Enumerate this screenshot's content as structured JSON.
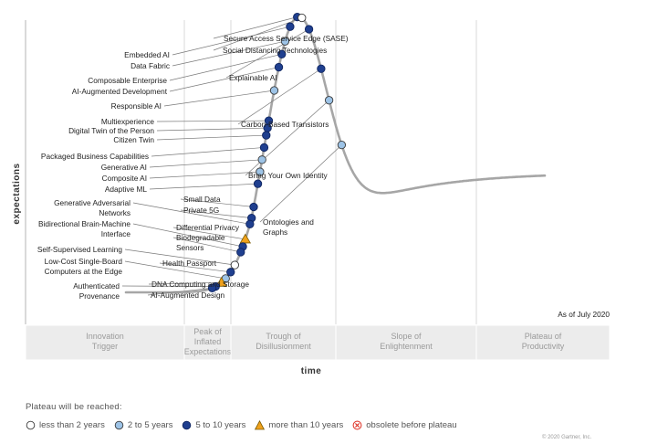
{
  "chart_data": {
    "type": "scatter",
    "title": "",
    "xlabel": "time",
    "ylabel": "expectations",
    "as_of": "As of July 2020",
    "phases": [
      "Innovation Trigger",
      "Peak of Inflated Expectations",
      "Trough of Disillusionment",
      "Slope of Enlightenment",
      "Plateau of Productivity"
    ],
    "legend_title": "Plateau will be reached:",
    "legend": [
      {
        "key": "lt2",
        "label": "less than 2 years"
      },
      {
        "key": "2to5",
        "label": "2 to 5 years"
      },
      {
        "key": "5to10",
        "label": "5 to 10 years"
      },
      {
        "key": "gt10",
        "label": "more than 10 years"
      },
      {
        "key": "obsolete",
        "label": "obsolete before plateau"
      }
    ],
    "colors": {
      "lt2": "#ffffff",
      "2to5": "#9dc3e6",
      "5to10": "#1f3f8f",
      "gt10": "#f0a21c",
      "obsolete": "#e03c31",
      "curve": "#a6a6a6"
    },
    "points": [
      {
        "name": "Secure Access Service Edge (SASE)",
        "t": 0.409,
        "plateau": "5to10"
      },
      {
        "name": "Social Distancing Technologies",
        "t": 0.42,
        "plateau": "lt2"
      },
      {
        "name": "Embedded AI",
        "t": 0.392,
        "plateau": "5to10"
      },
      {
        "name": "Data Fabric",
        "t": 0.38,
        "plateau": "2to5"
      },
      {
        "name": "Composable Enterprise",
        "t": 0.372,
        "plateau": "5to10"
      },
      {
        "name": "Explainable AI",
        "t": 0.437,
        "plateau": "5to10"
      },
      {
        "name": "AI-Augmented Development",
        "t": 0.365,
        "plateau": "5to10"
      },
      {
        "name": "Responsible AI",
        "t": 0.354,
        "plateau": "2to5"
      },
      {
        "name": "Carbon-Based Transistors",
        "t": 0.466,
        "plateau": "5to10"
      },
      {
        "name": "Multiexperience",
        "t": 0.341,
        "plateau": "5to10"
      },
      {
        "name": "Digital Twin of the Person",
        "t": 0.338,
        "plateau": "5to10"
      },
      {
        "name": "Citizen Twin",
        "t": 0.335,
        "plateau": "5to10"
      },
      {
        "name": "Packaged Business Capabilities",
        "t": 0.33,
        "plateau": "5to10"
      },
      {
        "name": "Bring Your Own Identity",
        "t": 0.485,
        "plateau": "2to5"
      },
      {
        "name": "Generative AI",
        "t": 0.325,
        "plateau": "2to5"
      },
      {
        "name": "Composite AI",
        "t": 0.32,
        "plateau": "2to5"
      },
      {
        "name": "Adaptive ML",
        "t": 0.315,
        "plateau": "5to10"
      },
      {
        "name": "Small Data",
        "t": 0.305,
        "plateau": "5to10"
      },
      {
        "name": "Private 5G",
        "t": 0.3,
        "plateau": "5to10"
      },
      {
        "name": "Generative Adversarial Networks",
        "t": 0.296,
        "plateau": "5to10"
      },
      {
        "name": "Differential Privacy",
        "t": 0.285,
        "plateau": "gt10"
      },
      {
        "name": "Ontologies and Graphs",
        "t": 0.515,
        "plateau": "2to5"
      },
      {
        "name": "Bidirectional Brain-Machine Interface",
        "t": 0.279,
        "plateau": "5to10"
      },
      {
        "name": "Biodegradable Sensors",
        "t": 0.274,
        "plateau": "5to10"
      },
      {
        "name": "Self-Supervised Learning",
        "t": 0.26,
        "plateau": "lt2"
      },
      {
        "name": "Health Passport",
        "t": 0.25,
        "plateau": "5to10"
      },
      {
        "name": "Low-Cost Single-Board Computers at the Edge",
        "t": 0.238,
        "plateau": "2to5"
      },
      {
        "name": "DNA Computing and Storage",
        "t": 0.228,
        "plateau": "gt10"
      },
      {
        "name": "Authenticated Provenance",
        "t": 0.214,
        "plateau": "5to10"
      },
      {
        "name": "AI-Augmented Design",
        "t": 0.206,
        "plateau": "5to10"
      }
    ]
  }
}
